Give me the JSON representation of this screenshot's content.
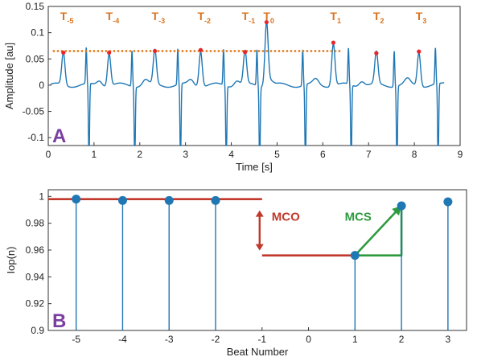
{
  "chart_data": [
    {
      "panel": "A",
      "type": "line",
      "xlabel": "Time [s]",
      "ylabel": "Amplitude [au]",
      "xlim": [
        0,
        9
      ],
      "ylim": [
        -0.115,
        0.15
      ],
      "xticks": [
        "0",
        "1",
        "2",
        "3",
        "4",
        "5",
        "6",
        "7",
        "8",
        "9"
      ],
      "yticks": [
        "-0.1",
        "-0.05",
        "0",
        "0.05",
        "0.1",
        "0.15"
      ],
      "series_color": "#1f77b4",
      "peak_color": "#e8262d",
      "threshold_color": "#e07b1e",
      "threshold": {
        "value": 0.065,
        "x_start": 0.1,
        "x_end": 6.4
      },
      "peaks": [
        {
          "label": "T",
          "sub": "-5",
          "x": 0.33,
          "y": 0.062
        },
        {
          "label": "T",
          "sub": "-4",
          "x": 1.33,
          "y": 0.062
        },
        {
          "label": "T",
          "sub": "-3",
          "x": 2.33,
          "y": 0.065
        },
        {
          "label": "T",
          "sub": "-2",
          "x": 3.33,
          "y": 0.067
        },
        {
          "label": "T",
          "sub": "-1",
          "x": 4.3,
          "y": 0.063
        },
        {
          "label": "T",
          "sub": "0",
          "x": 4.77,
          "y": 0.12
        },
        {
          "label": "T",
          "sub": "1",
          "x": 6.23,
          "y": 0.081
        },
        {
          "label": "T",
          "sub": "2",
          "x": 7.17,
          "y": 0.061
        },
        {
          "label": "T",
          "sub": "3",
          "x": 8.1,
          "y": 0.064
        }
      ],
      "r_peaks_x": [
        0.87,
        1.87,
        2.87,
        3.87,
        4.6,
        5.6,
        6.6,
        7.6,
        8.5
      ]
    },
    {
      "panel": "B",
      "type": "stem",
      "xlabel": "Beat Number",
      "ylabel": "Iop(n)",
      "xlim": [
        -5.6,
        3.4
      ],
      "ylim": [
        0.9,
        1.005
      ],
      "xticks": [
        "-5",
        "-4",
        "-3",
        "-2",
        "-1",
        "0",
        "1",
        "2",
        "3"
      ],
      "yticks": [
        "0.9",
        "0.92",
        "0.94",
        "0.96",
        "0.98",
        "1"
      ],
      "series_color": "#1f77b4",
      "points": [
        {
          "x": -5,
          "y": 0.998
        },
        {
          "x": -4,
          "y": 0.997
        },
        {
          "x": -3,
          "y": 0.997
        },
        {
          "x": -2,
          "y": 0.997
        },
        {
          "x": 1,
          "y": 0.956
        },
        {
          "x": 2,
          "y": 0.993
        },
        {
          "x": 3,
          "y": 0.996
        }
      ],
      "mco": {
        "label": "MCO",
        "color": "#c0392b",
        "high_y": 0.998,
        "low_y": 0.956,
        "high_x_end": -1,
        "low_x_start": -1,
        "low_x_end": 1
      },
      "mcs": {
        "label": "MCS",
        "color": "#2e9a3e",
        "from_x": 1,
        "from_y": 0.956,
        "to_x": 2,
        "to_y": 0.993
      }
    }
  ]
}
